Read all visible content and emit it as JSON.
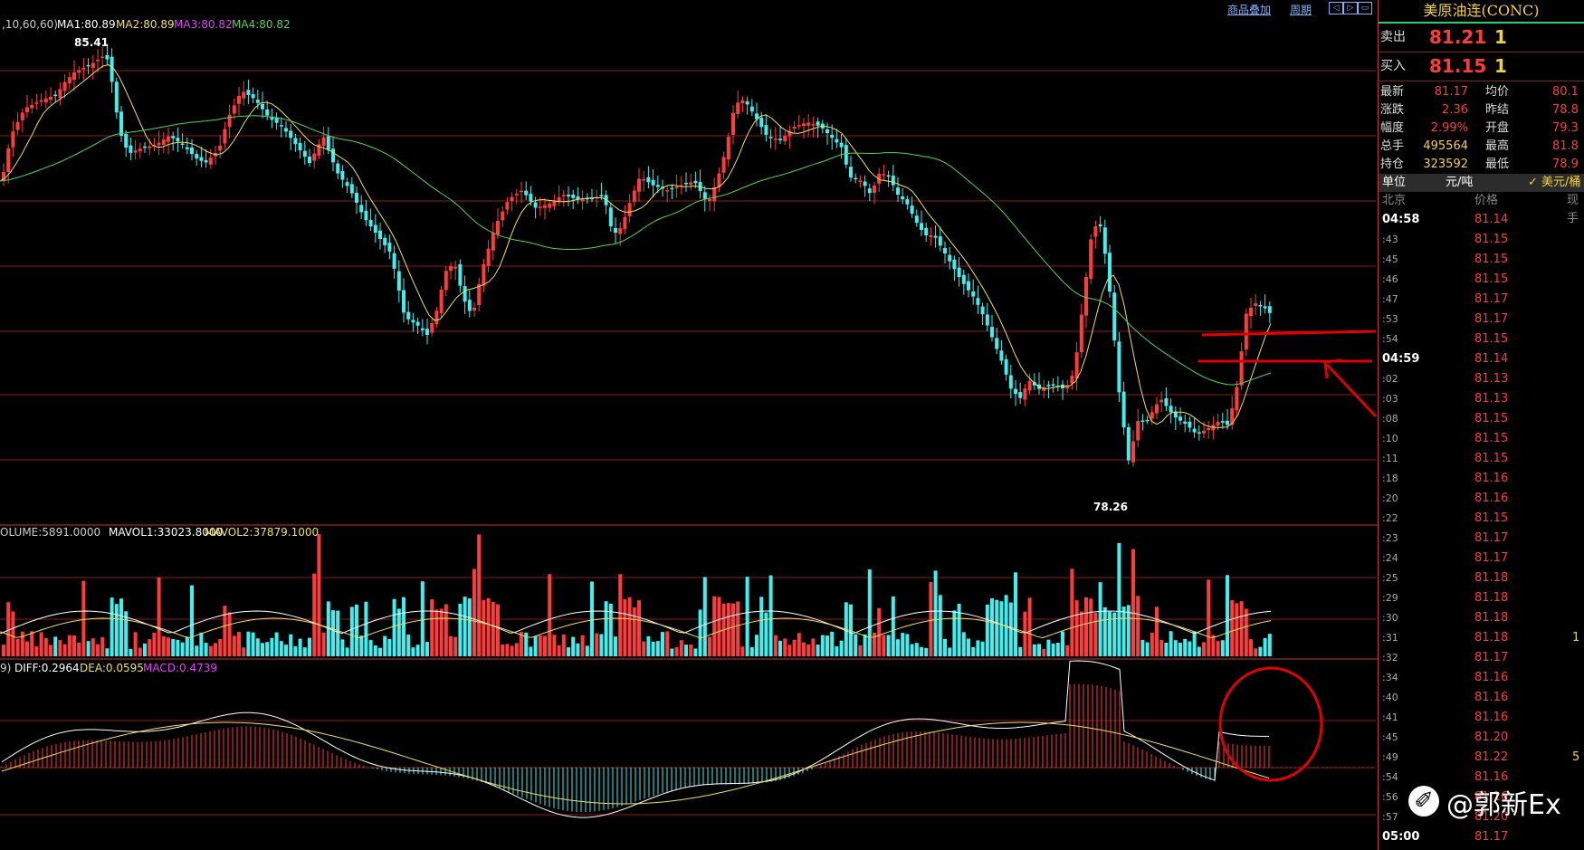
{
  "toolbar": {
    "overlay_label": "商品叠加",
    "period_label": "周期"
  },
  "price_panel": {
    "ma_params": ",10,60,60)",
    "ma1": "MA1:80.89",
    "ma2": "MA2:80.89",
    "ma3": "MA3:80.82",
    "ma4": "MA4:80.82",
    "high_marker": "85.41",
    "low_marker": "78.26"
  },
  "volume_panel": {
    "volume": "OLUME:5891.0000",
    "mavol1": "MAVOL1:33023.8000",
    "mavol2": "MAVOL2:37879.1000"
  },
  "macd_panel": {
    "params": "9)",
    "diff": "DIFF:0.2964",
    "dea": "DEA:0.0595",
    "macd": "MACD:0.4739"
  },
  "quote": {
    "title": "美原油连(CONC)",
    "sell_label": "卖出",
    "sell_price": "81.21",
    "sell_qty": "1",
    "buy_label": "买入",
    "buy_price": "81.15",
    "buy_qty": "1",
    "stats": [
      {
        "l1": "最新",
        "v1": "81.17",
        "l2": "均价",
        "v2": "80.1"
      },
      {
        "l1": "涨跌",
        "v1": "2.36",
        "l2": "昨结",
        "v2": "78.8"
      },
      {
        "l1": "幅度",
        "v1": "2.99%",
        "l2": "开盘",
        "v2": "79.3"
      },
      {
        "l1": "总手",
        "v1": "495564",
        "l2": "最高",
        "v2": "81.8"
      },
      {
        "l1": "持仓",
        "v1": "323592",
        "l2": "最低",
        "v2": "78.9"
      }
    ],
    "unit_label": "单位",
    "unit_value": "元/吨",
    "unit_alt": "✓ 美元/桶",
    "ticks_header": {
      "time": "北京",
      "price": "价格",
      "vol": "现手"
    },
    "ticks": [
      {
        "t": "04:58",
        "p": "81.14",
        "v": ""
      },
      {
        "t": ":43",
        "p": "81.15",
        "v": ""
      },
      {
        "t": ":45",
        "p": "81.15",
        "v": ""
      },
      {
        "t": ":46",
        "p": "81.15",
        "v": ""
      },
      {
        "t": ":47",
        "p": "81.17",
        "v": ""
      },
      {
        "t": ":53",
        "p": "81.17",
        "v": ""
      },
      {
        "t": ":54",
        "p": "81.15",
        "v": ""
      },
      {
        "t": "04:59",
        "p": "81.14",
        "v": ""
      },
      {
        "t": ":02",
        "p": "81.13",
        "v": ""
      },
      {
        "t": ":03",
        "p": "81.13",
        "v": ""
      },
      {
        "t": ":08",
        "p": "81.15",
        "v": ""
      },
      {
        "t": ":10",
        "p": "81.15",
        "v": ""
      },
      {
        "t": ":11",
        "p": "81.15",
        "v": ""
      },
      {
        "t": ":18",
        "p": "81.16",
        "v": ""
      },
      {
        "t": ":20",
        "p": "81.16",
        "v": ""
      },
      {
        "t": ":22",
        "p": "81.15",
        "v": ""
      },
      {
        "t": ":23",
        "p": "81.17",
        "v": ""
      },
      {
        "t": ":24",
        "p": "81.17",
        "v": ""
      },
      {
        "t": ":25",
        "p": "81.18",
        "v": ""
      },
      {
        "t": ":29",
        "p": "81.18",
        "v": ""
      },
      {
        "t": ":30",
        "p": "81.18",
        "v": ""
      },
      {
        "t": ":31",
        "p": "81.18",
        "v": "1"
      },
      {
        "t": ":32",
        "p": "81.17",
        "v": ""
      },
      {
        "t": ":34",
        "p": "81.16",
        "v": ""
      },
      {
        "t": ":40",
        "p": "81.16",
        "v": ""
      },
      {
        "t": ":41",
        "p": "81.16",
        "v": ""
      },
      {
        "t": ":45",
        "p": "81.20",
        "v": ""
      },
      {
        "t": ":49",
        "p": "81.22",
        "v": "5"
      },
      {
        "t": ":54",
        "p": "81.16",
        "v": ""
      },
      {
        "t": ":56",
        "p": "81.16",
        "v": ""
      },
      {
        "t": ":57",
        "p": "81.20",
        "v": ""
      },
      {
        "t": "05:00",
        "p": "81.17",
        "v": ""
      }
    ]
  },
  "watermark": "@郭新Ex",
  "colors": {
    "up": "#ff3b3b",
    "down": "#3ef0f0",
    "ma1": "#ffffff",
    "ma2": "#f1e05a",
    "ma3": "#e040fb",
    "ma4": "#52d452",
    "grid": "#8b1a1a",
    "annotation": "#e00000"
  }
}
